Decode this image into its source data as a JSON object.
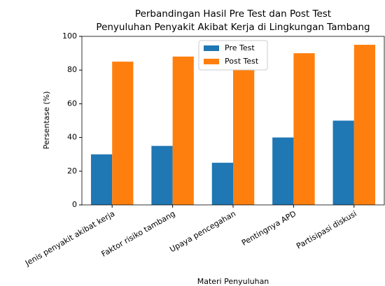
{
  "chart_data": {
    "type": "bar",
    "title": [
      "Perbandingan Hasil Pre Test dan Post Test",
      "Penyuluhan Penyakit Akibat Kerja di Lingkungan Tambang"
    ],
    "x_label": "Materi Penyuluhan",
    "y_label": "Persentase (%)",
    "categories": [
      "Jenis penyakit akibat kerja",
      "Faktor risiko tambang",
      "Upaya pencegahan",
      "Pentingnya APD",
      "Partisipasi diskusi"
    ],
    "series": [
      {
        "name": "Pre Test",
        "color": "#1f77b4",
        "values": [
          30,
          35,
          25,
          40,
          50
        ]
      },
      {
        "name": "Post Test",
        "color": "#ff7f0e",
        "values": [
          85,
          88,
          80,
          90,
          95
        ]
      }
    ],
    "ylim": [
      0,
      100
    ],
    "yticks": [
      0,
      20,
      40,
      60,
      80,
      100
    ],
    "legend": "upper center"
  }
}
